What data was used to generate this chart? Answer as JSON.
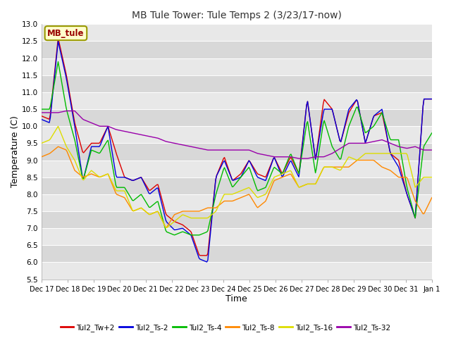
{
  "title": "MB Tule Tower: Tule Temps 2 (3/23/17-now)",
  "xlabel": "Time",
  "ylabel": "Temperature (C)",
  "ylim": [
    5.5,
    13.0
  ],
  "yticks": [
    5.5,
    6.0,
    6.5,
    7.0,
    7.5,
    8.0,
    8.5,
    9.0,
    9.5,
    10.0,
    10.5,
    11.0,
    11.5,
    12.0,
    12.5,
    13.0
  ],
  "fig_bg": "#c8c8c8",
  "plot_bg_light": "#e8e8e8",
  "plot_bg_dark": "#d8d8d8",
  "legend_label": "MB_tule",
  "series_colors": {
    "Tul2_Tw+2": "#dd0000",
    "Tul2_Ts-2": "#0000dd",
    "Tul2_Ts-4": "#00bb00",
    "Tul2_Ts-8": "#ff8800",
    "Tul2_Ts-16": "#dddd00",
    "Tul2_Ts-32": "#9900aa"
  },
  "x_tick_labels": [
    "Dec 17",
    "Dec 18",
    "Dec 19",
    "Dec 20",
    "Dec 21",
    "Dec 22",
    "Dec 23",
    "Dec 24",
    "Dec 25",
    "Dec 26",
    "Dec 27",
    "Dec 28",
    "Dec 29",
    "Dec 30",
    "Dec 31",
    "Jan 1"
  ],
  "tw2": [
    10.3,
    10.2,
    12.6,
    11.5,
    10.1,
    9.2,
    9.5,
    9.5,
    10.0,
    9.2,
    8.5,
    8.4,
    8.5,
    8.1,
    8.3,
    7.4,
    7.2,
    7.1,
    6.9,
    6.2,
    6.2,
    8.5,
    9.1,
    8.4,
    8.6,
    9.0,
    8.6,
    8.5,
    9.1,
    8.6,
    9.1,
    8.6,
    10.8,
    9.0,
    10.8,
    10.5,
    9.5,
    10.4,
    10.8,
    9.5,
    10.3,
    10.4,
    9.2,
    9.0,
    8.0,
    7.3,
    10.8,
    10.8
  ],
  "ts2": [
    10.2,
    10.1,
    12.5,
    11.4,
    10.0,
    8.4,
    9.4,
    9.4,
    10.0,
    8.5,
    8.5,
    8.4,
    8.5,
    8.0,
    8.2,
    7.2,
    6.95,
    7.0,
    6.8,
    6.1,
    6.0,
    8.5,
    9.0,
    8.4,
    8.5,
    9.0,
    8.5,
    8.4,
    9.1,
    8.5,
    9.0,
    8.5,
    10.8,
    9.0,
    10.5,
    10.5,
    9.5,
    10.5,
    10.8,
    9.5,
    10.3,
    10.5,
    9.2,
    8.8,
    8.0,
    7.3,
    10.8,
    10.8
  ],
  "ts4": [
    10.5,
    10.5,
    11.9,
    10.5,
    9.6,
    8.4,
    9.3,
    9.2,
    9.6,
    8.2,
    8.2,
    7.8,
    8.0,
    7.6,
    7.8,
    6.9,
    6.8,
    6.9,
    6.8,
    6.8,
    6.9,
    8.0,
    8.8,
    8.2,
    8.5,
    8.8,
    8.1,
    8.2,
    8.8,
    8.6,
    9.2,
    8.6,
    10.2,
    8.6,
    10.2,
    9.4,
    9.0,
    10.0,
    10.6,
    9.8,
    10.0,
    10.4,
    9.6,
    9.6,
    8.2,
    7.3,
    9.4,
    9.8
  ],
  "ts8": [
    9.1,
    9.2,
    9.4,
    9.3,
    8.7,
    8.5,
    8.6,
    8.5,
    8.6,
    8.0,
    7.9,
    7.5,
    7.6,
    7.4,
    7.5,
    7.0,
    7.4,
    7.5,
    7.5,
    7.5,
    7.6,
    7.6,
    7.8,
    7.8,
    7.9,
    8.0,
    7.6,
    7.8,
    8.4,
    8.5,
    8.6,
    8.2,
    8.3,
    8.3,
    8.8,
    8.8,
    8.8,
    8.8,
    9.0,
    9.0,
    9.0,
    8.8,
    8.7,
    8.5,
    8.5,
    7.8,
    7.4,
    7.9
  ],
  "ts16": [
    9.5,
    9.6,
    10.0,
    9.4,
    9.0,
    8.4,
    8.7,
    8.5,
    8.6,
    8.1,
    8.1,
    7.5,
    7.6,
    7.4,
    7.5,
    7.0,
    7.2,
    7.4,
    7.3,
    7.3,
    7.3,
    7.5,
    8.0,
    8.0,
    8.1,
    8.2,
    7.9,
    8.0,
    8.5,
    8.6,
    8.7,
    8.2,
    8.3,
    8.3,
    8.8,
    8.8,
    8.7,
    9.1,
    9.0,
    9.2,
    9.2,
    9.2,
    9.2,
    9.2,
    9.2,
    8.2,
    8.5,
    8.5
  ],
  "ts32": [
    10.4,
    10.4,
    10.4,
    10.45,
    10.45,
    10.2,
    10.1,
    10.0,
    10.0,
    9.9,
    9.85,
    9.8,
    9.75,
    9.7,
    9.65,
    9.55,
    9.5,
    9.45,
    9.4,
    9.35,
    9.3,
    9.3,
    9.3,
    9.3,
    9.3,
    9.3,
    9.2,
    9.15,
    9.1,
    9.1,
    9.1,
    9.05,
    9.05,
    9.1,
    9.1,
    9.2,
    9.35,
    9.5,
    9.5,
    9.5,
    9.55,
    9.6,
    9.5,
    9.4,
    9.35,
    9.4,
    9.3,
    9.3
  ]
}
